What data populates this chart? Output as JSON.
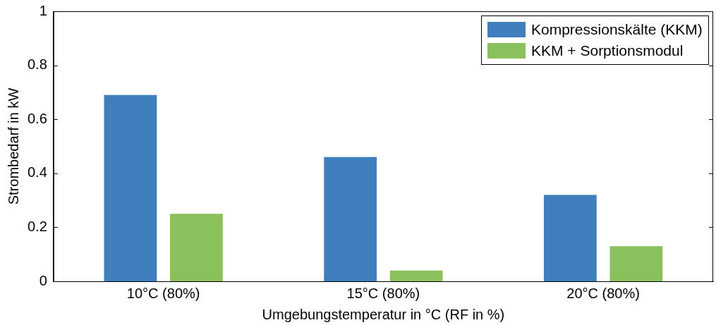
{
  "chart_data": {
    "type": "bar",
    "xlabel": "Umgebungstemperatur in °C (RF in %)",
    "ylabel": "Strombedarf in kW",
    "categories": [
      "10°C (80%)",
      "15°C (80%)",
      "20°C (80%)"
    ],
    "series": [
      {
        "name": "Kompressionskälte (KKM)",
        "color": "#3f7fbd",
        "values": [
          0.69,
          0.46,
          0.32
        ]
      },
      {
        "name": "KKM + Sorptionsmodul",
        "color": "#8bc15c",
        "values": [
          0.25,
          0.04,
          0.13
        ]
      }
    ],
    "ylim": [
      0,
      1
    ],
    "yticks": [
      0,
      0.2,
      0.4,
      0.6,
      0.8,
      1
    ],
    "grid": false,
    "legend": "top right"
  }
}
